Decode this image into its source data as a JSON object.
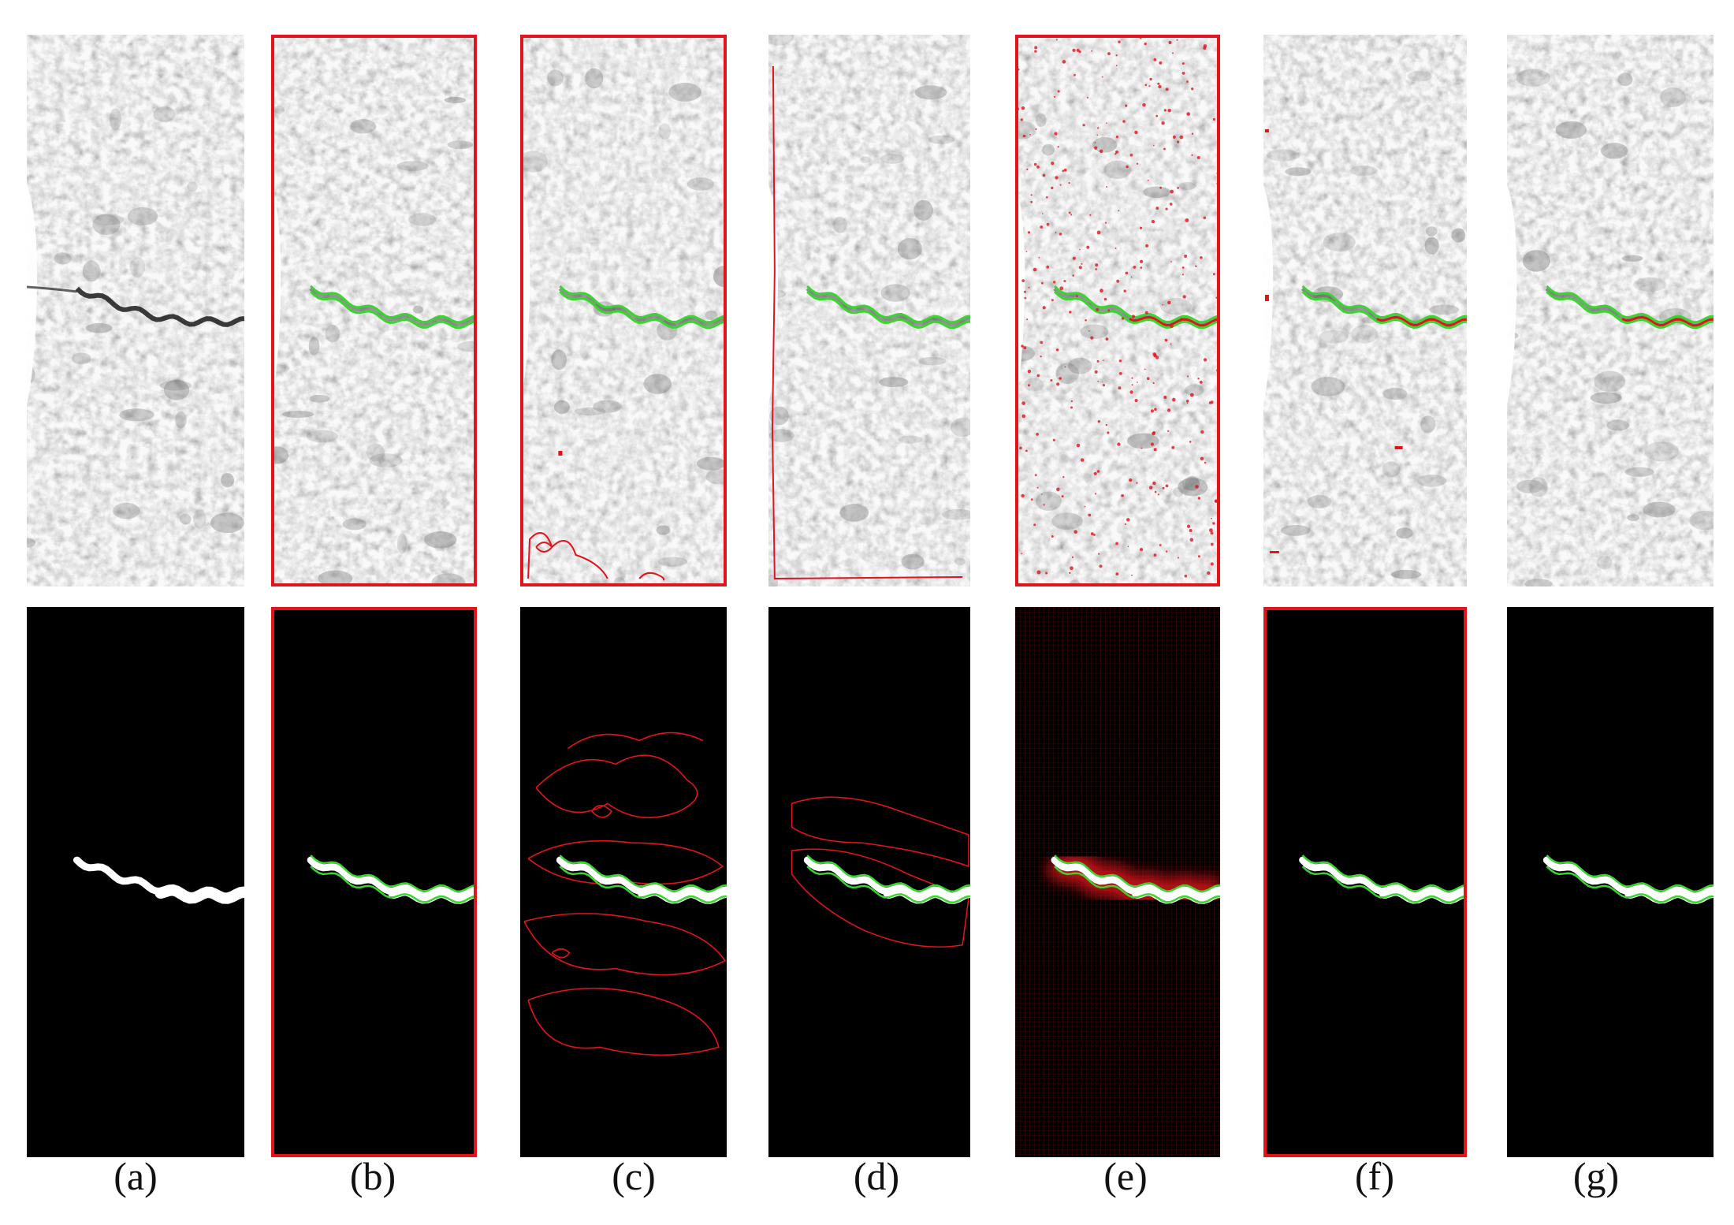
{
  "figure": {
    "labels": [
      "(a)",
      "(b)",
      "(c)",
      "(d)",
      "(e)",
      "(f)",
      "(g)"
    ]
  },
  "colors": {
    "ground_truth": "#39d62f",
    "prediction": "#e2131b",
    "mask": "#ffffff",
    "background": "#000000",
    "texture_light": "#d8d8d8",
    "texture_dark": "#6d6d6d"
  }
}
